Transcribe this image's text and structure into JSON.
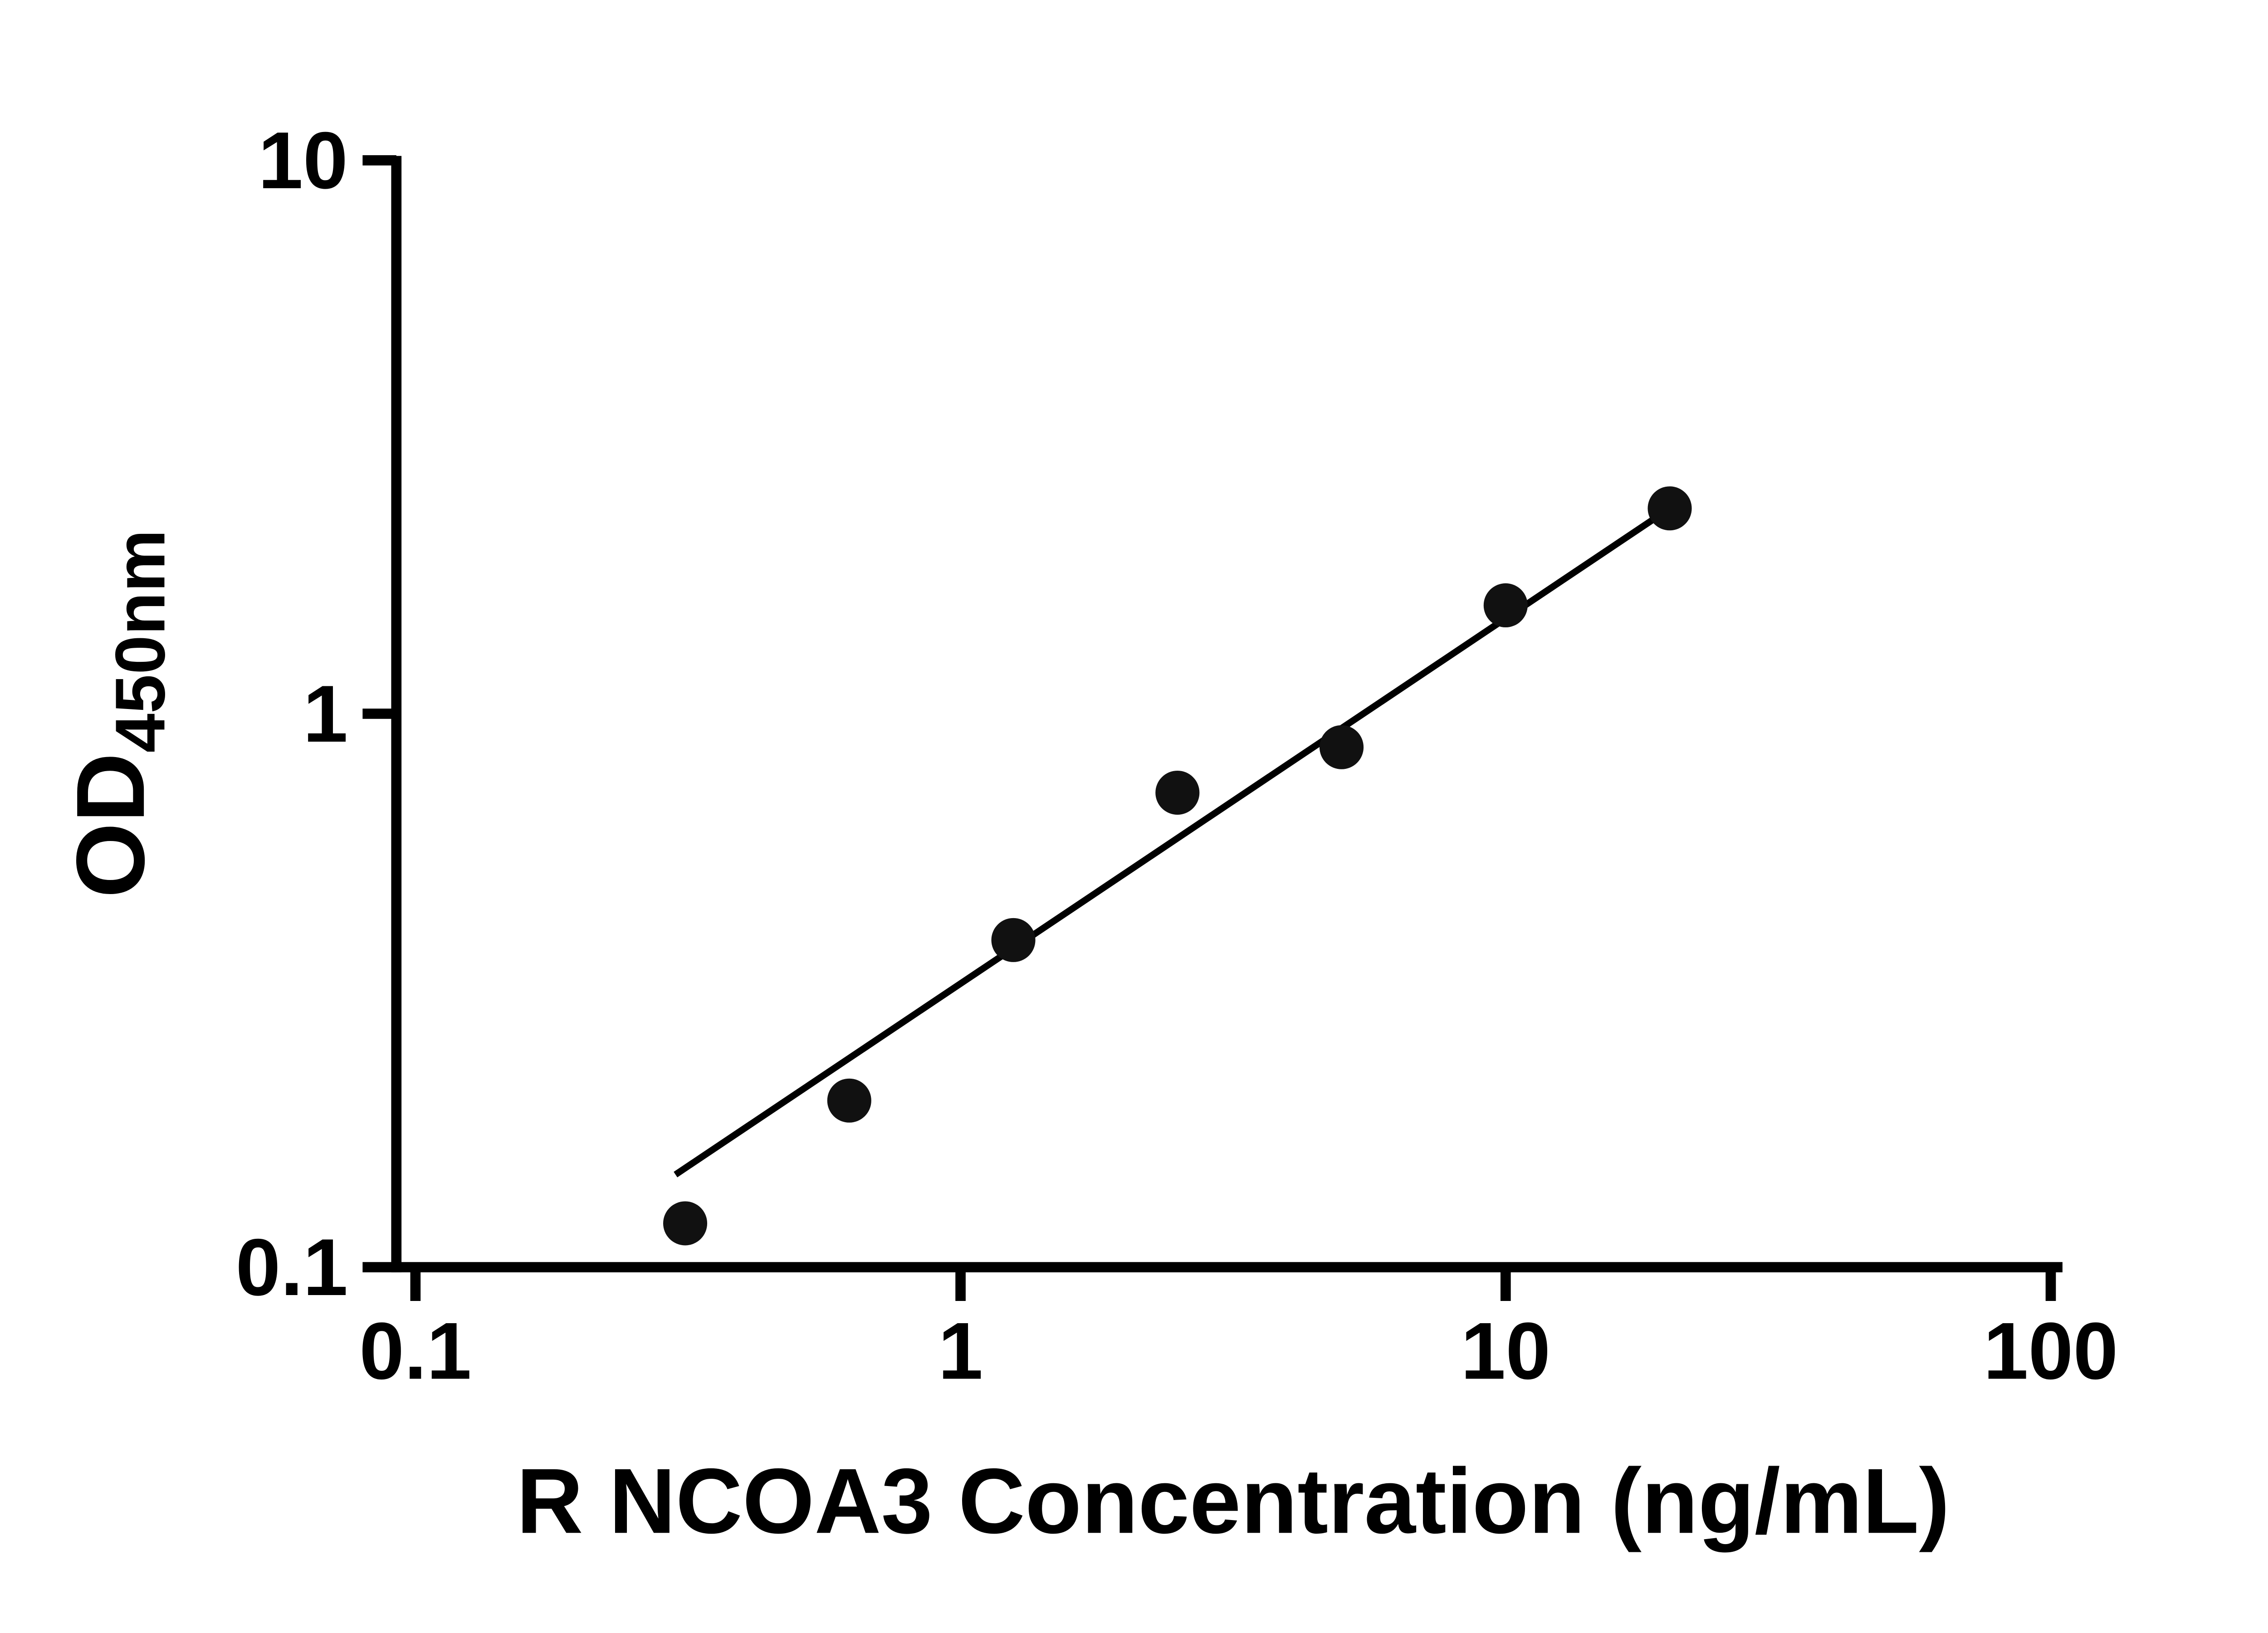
{
  "chart_data": {
    "type": "scatter",
    "title": "",
    "xlabel": "R NCOA3 Concentration (ng/mL)",
    "ylabel": "OD450nm",
    "ylabel_main": "OD",
    "ylabel_sub": "450nm",
    "xscale": "log",
    "yscale": "log",
    "xlim": [
      0.1,
      100
    ],
    "ylim": [
      0.1,
      10
    ],
    "xticks": [
      0.1,
      1,
      10,
      100
    ],
    "xtick_labels": [
      "0.1",
      "1",
      "10",
      "100"
    ],
    "yticks": [
      0.1,
      1,
      10
    ],
    "ytick_labels": [
      "0.1",
      "1",
      "10"
    ],
    "grid": false,
    "legend": "none",
    "marker_color": "#111111",
    "line_color": "#000000",
    "series": [
      {
        "name": "fit-line",
        "type": "line",
        "x": [
          0.3,
          20
        ],
        "y": [
          0.147,
          2.35
        ]
      },
      {
        "name": "standard-points",
        "type": "scatter",
        "marker": "filled-circle",
        "x": [
          0.3125,
          0.625,
          1.25,
          2.5,
          5,
          10,
          20
        ],
        "y": [
          0.12,
          0.2,
          0.39,
          0.72,
          0.87,
          1.57,
          2.35
        ]
      }
    ]
  }
}
